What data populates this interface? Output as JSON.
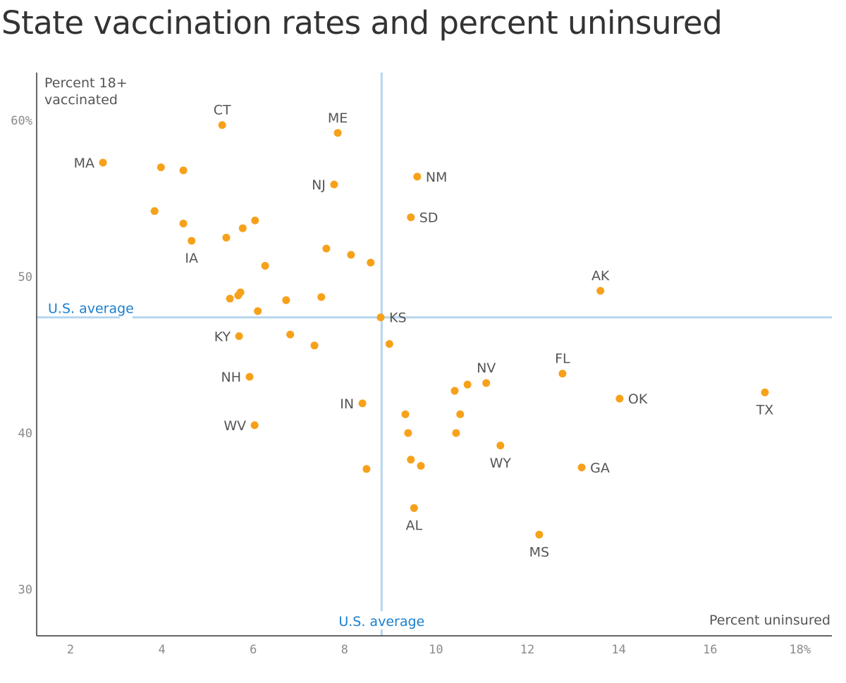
{
  "chart_data": {
    "type": "scatter",
    "title": "State vaccination rates and percent uninsured",
    "xlabel": "Percent uninsured",
    "ylabel": "Percent 18+ vaccinated",
    "xlim": [
      1.3,
      18.7
    ],
    "ylim": [
      27,
      63
    ],
    "x_ticks": [
      2,
      4,
      6,
      8,
      10,
      12,
      14,
      16,
      18
    ],
    "x_tick_labels": [
      "2",
      "4",
      "6",
      "8",
      "10",
      "12",
      "14",
      "16",
      "18%"
    ],
    "y_ticks": [
      30,
      40,
      50,
      60
    ],
    "y_tick_labels": [
      "30",
      "40",
      "50",
      "60%"
    ],
    "grid": false,
    "point_color": "#f7a11a",
    "average_line_color": "#b5d5ee",
    "average_label_color": "#1a7fd0",
    "us_average": {
      "x": 8.81,
      "y": 47.4,
      "x_label": "U.S. average",
      "y_label": "U.S. average"
    },
    "points": [
      {
        "label": "CT",
        "x": 5.32,
        "y": 59.7
      },
      {
        "label": "ME",
        "x": 7.85,
        "y": 59.2
      },
      {
        "label": "MA",
        "x": 2.71,
        "y": 57.3
      },
      {
        "label": "",
        "x": 3.98,
        "y": 57.0
      },
      {
        "label": "",
        "x": 4.47,
        "y": 56.8
      },
      {
        "label": "NJ",
        "x": 7.77,
        "y": 55.9
      },
      {
        "label": "NM",
        "x": 9.59,
        "y": 56.4
      },
      {
        "label": "SD",
        "x": 9.45,
        "y": 53.8
      },
      {
        "label": "",
        "x": 3.84,
        "y": 54.2
      },
      {
        "label": "",
        "x": 4.47,
        "y": 53.4
      },
      {
        "label": "",
        "x": 6.04,
        "y": 53.6
      },
      {
        "label": "",
        "x": 5.77,
        "y": 53.1
      },
      {
        "label": "",
        "x": 5.41,
        "y": 52.5
      },
      {
        "label": "IA",
        "x": 4.65,
        "y": 52.3
      },
      {
        "label": "",
        "x": 7.6,
        "y": 51.8
      },
      {
        "label": "",
        "x": 8.14,
        "y": 51.4
      },
      {
        "label": "",
        "x": 8.57,
        "y": 50.9
      },
      {
        "label": "",
        "x": 6.26,
        "y": 50.7
      },
      {
        "label": "AK",
        "x": 13.6,
        "y": 49.1
      },
      {
        "label": "",
        "x": 5.72,
        "y": 49.0
      },
      {
        "label": "",
        "x": 5.67,
        "y": 48.8
      },
      {
        "label": "",
        "x": 5.49,
        "y": 48.6
      },
      {
        "label": "",
        "x": 6.72,
        "y": 48.5
      },
      {
        "label": "",
        "x": 7.49,
        "y": 48.7
      },
      {
        "label": "",
        "x": 6.1,
        "y": 47.8
      },
      {
        "label": "KS",
        "x": 8.79,
        "y": 47.4
      },
      {
        "label": "KY",
        "x": 5.69,
        "y": 46.2
      },
      {
        "label": "",
        "x": 6.81,
        "y": 46.3
      },
      {
        "label": "",
        "x": 7.34,
        "y": 45.6
      },
      {
        "label": "",
        "x": 8.98,
        "y": 45.7
      },
      {
        "label": "NH",
        "x": 5.92,
        "y": 43.6
      },
      {
        "label": "FL",
        "x": 12.77,
        "y": 43.8
      },
      {
        "label": "NV",
        "x": 11.1,
        "y": 43.2
      },
      {
        "label": "",
        "x": 10.69,
        "y": 43.1
      },
      {
        "label": "",
        "x": 10.41,
        "y": 42.7
      },
      {
        "label": "TX",
        "x": 17.2,
        "y": 42.6
      },
      {
        "label": "OK",
        "x": 14.02,
        "y": 42.2
      },
      {
        "label": "IN",
        "x": 8.39,
        "y": 41.9
      },
      {
        "label": "",
        "x": 9.33,
        "y": 41.2
      },
      {
        "label": "",
        "x": 10.53,
        "y": 41.2
      },
      {
        "label": "WV",
        "x": 6.03,
        "y": 40.5
      },
      {
        "label": "",
        "x": 9.39,
        "y": 40.0
      },
      {
        "label": "",
        "x": 10.44,
        "y": 40.0
      },
      {
        "label": "WY",
        "x": 11.41,
        "y": 39.2
      },
      {
        "label": "",
        "x": 9.45,
        "y": 38.3
      },
      {
        "label": "",
        "x": 9.67,
        "y": 37.9
      },
      {
        "label": "GA",
        "x": 13.19,
        "y": 37.8
      },
      {
        "label": "",
        "x": 8.48,
        "y": 37.7
      },
      {
        "label": "AL",
        "x": 9.52,
        "y": 35.2
      },
      {
        "label": "MS",
        "x": 12.26,
        "y": 33.5
      }
    ]
  }
}
